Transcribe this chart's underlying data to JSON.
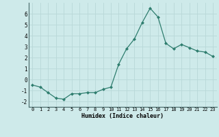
{
  "x": [
    0,
    1,
    2,
    3,
    4,
    5,
    6,
    7,
    8,
    9,
    10,
    11,
    12,
    13,
    14,
    15,
    16,
    17,
    18,
    19,
    20,
    21,
    22,
    23
  ],
  "y": [
    -0.5,
    -0.7,
    -1.2,
    -1.7,
    -1.8,
    -1.3,
    -1.3,
    -1.2,
    -1.2,
    -0.9,
    -0.7,
    1.4,
    2.8,
    3.7,
    5.2,
    6.5,
    5.7,
    3.3,
    2.8,
    3.2,
    2.9,
    2.6,
    2.5,
    2.1
  ],
  "line_color": "#2e7d6e",
  "marker_color": "#2e7d6e",
  "bg_color": "#ceeaea",
  "grid_color": "#b8d8d8",
  "xlabel": "Humidex (Indice chaleur)",
  "xlim": [
    -0.5,
    23.5
  ],
  "ylim": [
    -2.5,
    7.0
  ],
  "yticks": [
    -2,
    -1,
    0,
    1,
    2,
    3,
    4,
    5,
    6
  ],
  "xticks": [
    0,
    1,
    2,
    3,
    4,
    5,
    6,
    7,
    8,
    9,
    10,
    11,
    12,
    13,
    14,
    15,
    16,
    17,
    18,
    19,
    20,
    21,
    22,
    23
  ],
  "xtick_labels": [
    "0",
    "1",
    "2",
    "3",
    "4",
    "5",
    "6",
    "7",
    "8",
    "9",
    "10",
    "11",
    "12",
    "13",
    "14",
    "15",
    "16",
    "17",
    "18",
    "19",
    "20",
    "21",
    "22",
    "23"
  ]
}
